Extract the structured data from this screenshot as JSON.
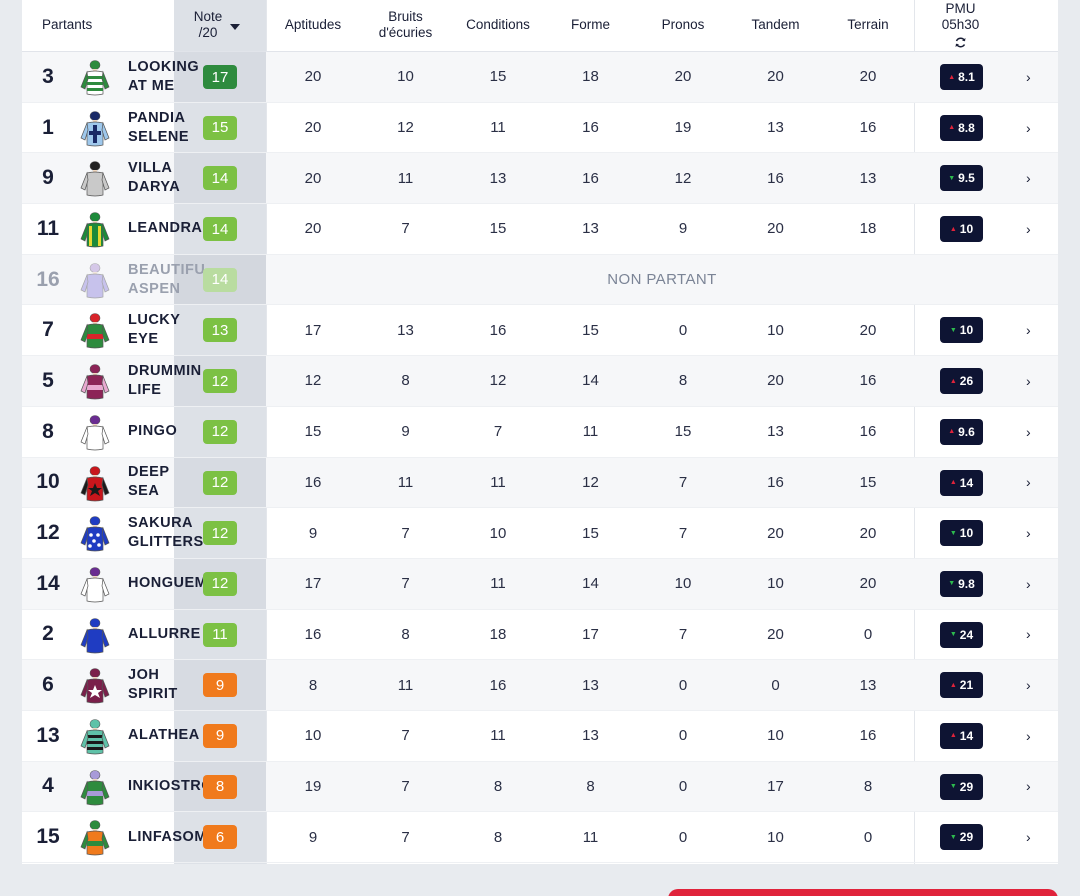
{
  "headers": {
    "partants": "Partants",
    "note_line1": "Note",
    "note_line2": "/20",
    "aptitudes": "Aptitudes",
    "bruits_line1": "Bruits",
    "bruits_line2": "d'écuries",
    "conditions": "Conditions",
    "forme": "Forme",
    "pronos": "Pronos",
    "tandem": "Tandem",
    "terrain": "Terrain",
    "pmu_line1": "PMU",
    "pmu_line2": "05h30"
  },
  "non_partant_label": "NON PARTANT",
  "colors": {
    "green_dark": "#2e8b3e",
    "green": "#7cc144",
    "orange": "#f07a1c",
    "navy": "#0e1433",
    "red": "#e0233b"
  },
  "rows": [
    {
      "num": "3",
      "name": "LOOKING\nAT ME",
      "note": "17",
      "noteColor": "#2e8b3e",
      "apt": "20",
      "bruits": "10",
      "cond": "15",
      "forme": "18",
      "pronos": "20",
      "tandem": "20",
      "terrain": "20",
      "odds": "8.1",
      "trend": "up",
      "silk": "green-white-hoops"
    },
    {
      "num": "1",
      "name": "PANDIA\nSELENE",
      "note": "15",
      "noteColor": "#7cc144",
      "apt": "20",
      "bruits": "12",
      "cond": "11",
      "forme": "16",
      "pronos": "19",
      "tandem": "13",
      "terrain": "16",
      "odds": "8.8",
      "trend": "up",
      "silk": "lightblue-navy-cross"
    },
    {
      "num": "9",
      "name": "VILLA\nDARYA",
      "note": "14",
      "noteColor": "#7cc144",
      "apt": "20",
      "bruits": "11",
      "cond": "13",
      "forme": "16",
      "pronos": "12",
      "tandem": "16",
      "terrain": "13",
      "odds": "9.5",
      "trend": "down",
      "silk": "grey"
    },
    {
      "num": "11",
      "name": "LEANDRA",
      "note": "14",
      "noteColor": "#7cc144",
      "apt": "20",
      "bruits": "7",
      "cond": "15",
      "forme": "13",
      "pronos": "9",
      "tandem": "20",
      "terrain": "18",
      "odds": "10",
      "trend": "up",
      "silk": "green-yellow-braces"
    },
    {
      "num": "16",
      "name": "BEAUTIFUL\nASPEN",
      "note": "14",
      "noteColor": "#b9dca0",
      "np": true,
      "silk": "lavender"
    },
    {
      "num": "7",
      "name": "LUCKY\nEYE",
      "note": "13",
      "noteColor": "#7cc144",
      "apt": "17",
      "bruits": "13",
      "cond": "16",
      "forme": "15",
      "pronos": "0",
      "tandem": "10",
      "terrain": "20",
      "odds": "10",
      "trend": "down",
      "silk": "green-red-band"
    },
    {
      "num": "5",
      "name": "DRUMMIN\nLIFE",
      "note": "12",
      "noteColor": "#7cc144",
      "apt": "12",
      "bruits": "8",
      "cond": "12",
      "forme": "14",
      "pronos": "8",
      "tandem": "20",
      "terrain": "16",
      "odds": "26",
      "trend": "up",
      "silk": "maroon-pink"
    },
    {
      "num": "8",
      "name": "PINGO",
      "note": "12",
      "noteColor": "#7cc144",
      "apt": "15",
      "bruits": "9",
      "cond": "7",
      "forme": "11",
      "pronos": "15",
      "tandem": "13",
      "terrain": "16",
      "odds": "9.6",
      "trend": "up",
      "silk": "white-purple"
    },
    {
      "num": "10",
      "name": "DEEP\nSEA",
      "note": "12",
      "noteColor": "#7cc144",
      "apt": "16",
      "bruits": "11",
      "cond": "11",
      "forme": "12",
      "pronos": "7",
      "tandem": "16",
      "terrain": "15",
      "odds": "14",
      "trend": "up",
      "silk": "red-black-star"
    },
    {
      "num": "12",
      "name": "SAKURA\nGLITTERS",
      "note": "12",
      "noteColor": "#7cc144",
      "apt": "9",
      "bruits": "7",
      "cond": "10",
      "forme": "15",
      "pronos": "7",
      "tandem": "20",
      "terrain": "20",
      "odds": "10",
      "trend": "down",
      "silk": "blue-white-spots"
    },
    {
      "num": "14",
      "name": "HONGUEM",
      "note": "12",
      "noteColor": "#7cc144",
      "apt": "17",
      "bruits": "7",
      "cond": "11",
      "forme": "14",
      "pronos": "10",
      "tandem": "10",
      "terrain": "20",
      "odds": "9.8",
      "trend": "down",
      "silk": "white-purple"
    },
    {
      "num": "2",
      "name": "ALLURRE",
      "note": "11",
      "noteColor": "#7cc144",
      "apt": "16",
      "bruits": "8",
      "cond": "18",
      "forme": "17",
      "pronos": "7",
      "tandem": "20",
      "terrain": "0",
      "odds": "24",
      "trend": "down",
      "silk": "blue"
    },
    {
      "num": "6",
      "name": "JOH\nSPIRIT",
      "note": "9",
      "noteColor": "#f07a1c",
      "apt": "8",
      "bruits": "11",
      "cond": "16",
      "forme": "13",
      "pronos": "0",
      "tandem": "0",
      "terrain": "13",
      "odds": "21",
      "trend": "up",
      "silk": "maroon-white-star"
    },
    {
      "num": "13",
      "name": "ALATHEA",
      "note": "9",
      "noteColor": "#f07a1c",
      "apt": "10",
      "bruits": "7",
      "cond": "11",
      "forme": "13",
      "pronos": "0",
      "tandem": "10",
      "terrain": "16",
      "odds": "14",
      "trend": "up",
      "silk": "teal-black-hoops"
    },
    {
      "num": "4",
      "name": "INKIOSTRO",
      "note": "8",
      "noteColor": "#f07a1c",
      "apt": "19",
      "bruits": "7",
      "cond": "8",
      "forme": "8",
      "pronos": "0",
      "tandem": "17",
      "terrain": "8",
      "odds": "29",
      "trend": "down",
      "silk": "green-lavender"
    },
    {
      "num": "15",
      "name": "LINFASOME",
      "note": "6",
      "noteColor": "#f07a1c",
      "apt": "9",
      "bruits": "7",
      "cond": "8",
      "forme": "11",
      "pronos": "0",
      "tandem": "10",
      "terrain": "0",
      "odds": "29",
      "trend": "down",
      "silk": "orange-green"
    }
  ]
}
